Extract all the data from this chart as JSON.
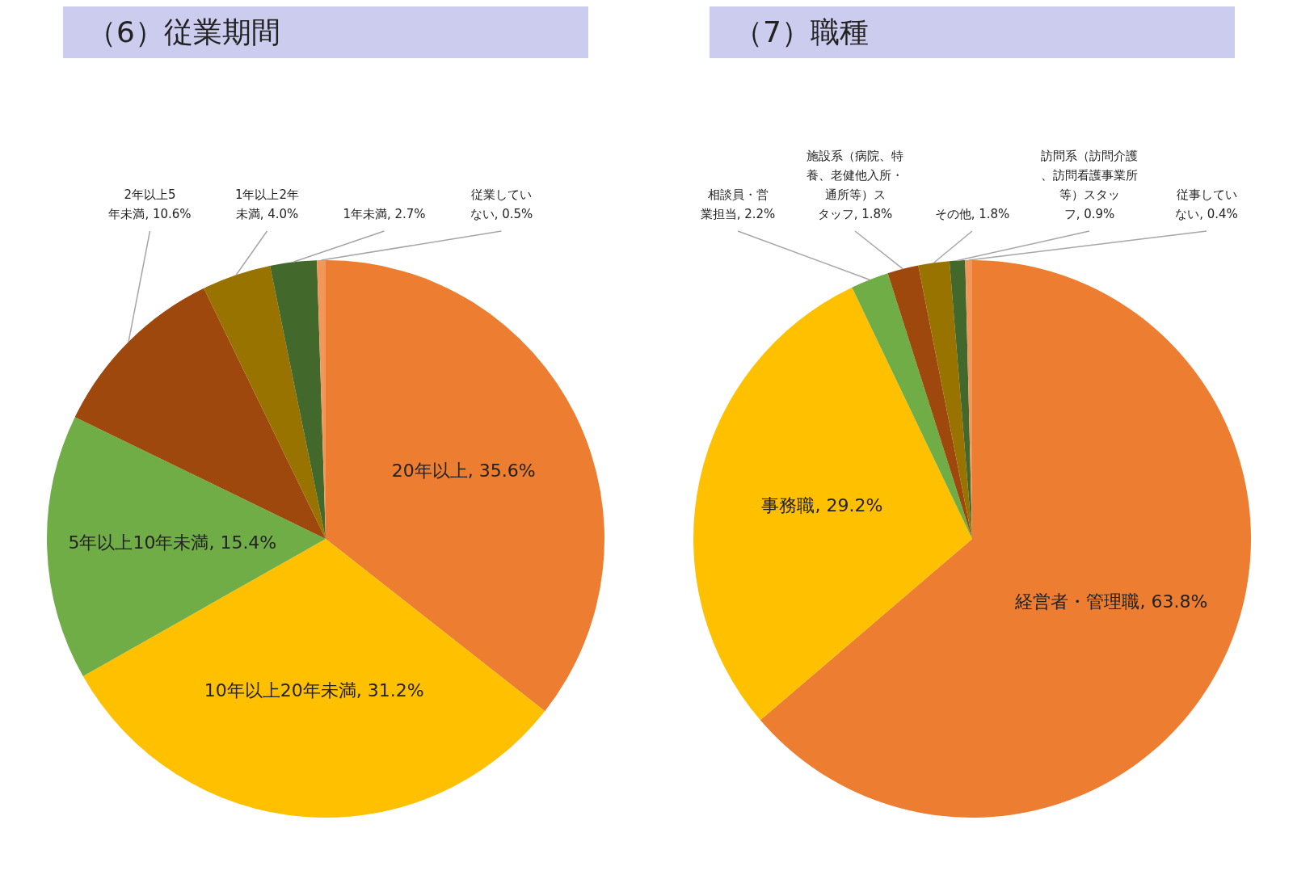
{
  "chart_data": [
    {
      "type": "pie",
      "title": "（6）従業期間",
      "categories": [
        "20年以上",
        "10年以上20年未満",
        "5年以上10年未満",
        "2年以上5年未満",
        "1年以上2年未満",
        "1年未満",
        "従業していない"
      ],
      "values": [
        35.6,
        31.2,
        15.4,
        10.6,
        4.0,
        2.7,
        0.5
      ],
      "value_labels": [
        "35.6%",
        "31.2%",
        "15.4%",
        "10.6%",
        "4.0%",
        "2.7%",
        "0.5%"
      ],
      "colors": [
        "#ed7d31",
        "#ffc000",
        "#70ad47",
        "#9e480e",
        "#997300",
        "#43682b",
        "#f1975a"
      ]
    },
    {
      "type": "pie",
      "title": "（7）職種",
      "categories": [
        "経営者・管理職",
        "事務職",
        "相談員・営業担当",
        "施設系（病院、特養、老健他入所・通所等）スタッフ",
        "その他",
        "訪問系（訪問介護、訪問看護事業所等）スタッフ",
        "従事していない"
      ],
      "values": [
        63.8,
        29.2,
        2.2,
        1.8,
        1.8,
        0.9,
        0.4
      ],
      "value_labels": [
        "63.8%",
        "29.2%",
        "2.2%",
        "1.8%",
        "1.8%",
        "0.9%",
        "0.4%"
      ],
      "colors": [
        "#ed7d31",
        "#ffc000",
        "#70ad47",
        "#9e480e",
        "#997300",
        "#43682b",
        "#f1975a"
      ]
    }
  ]
}
